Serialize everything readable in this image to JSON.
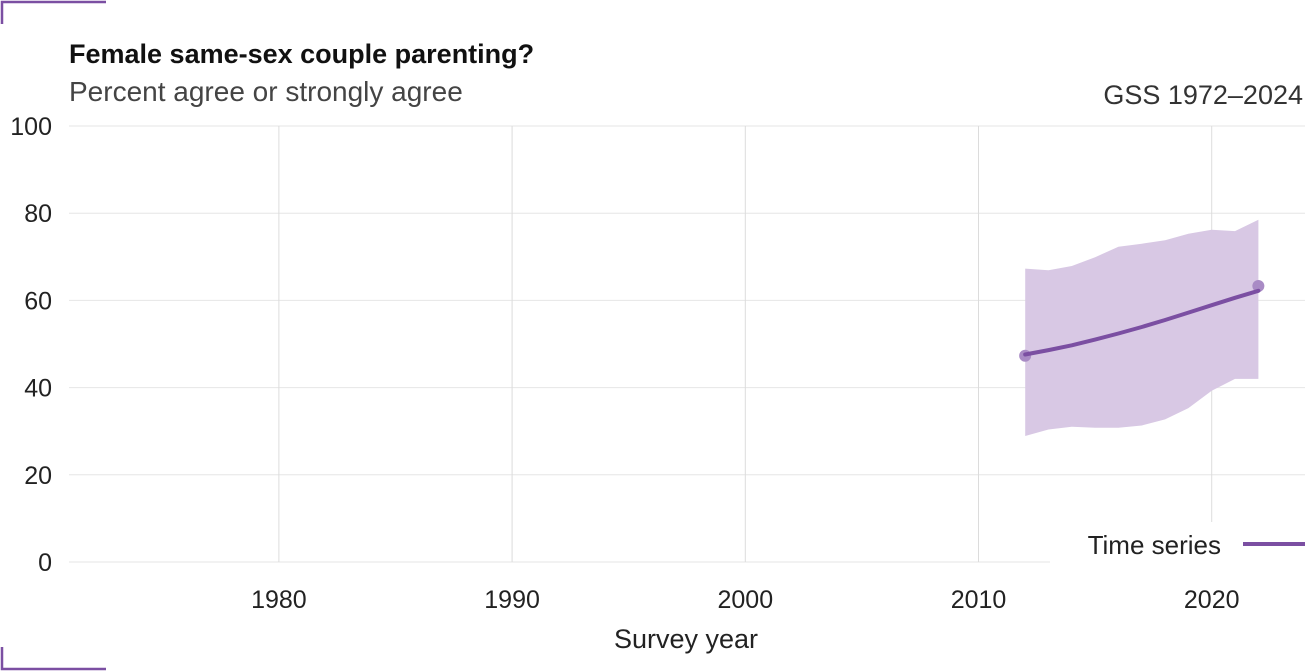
{
  "colors": {
    "accent": "#7b4fa2",
    "band": "#d8c8e4",
    "point": "#a98bc5"
  },
  "chart_data": {
    "type": "line",
    "title": "Female same-sex couple parenting?",
    "subtitle": "Percent agree or strongly agree",
    "source": "GSS 1972–2024",
    "xlabel": "Survey year",
    "ylabel": "",
    "xlim": [
      1971,
      2024
    ],
    "ylim": [
      0,
      100
    ],
    "x_ticks": [
      1980,
      1990,
      2000,
      2010,
      2020
    ],
    "y_ticks": [
      0,
      20,
      40,
      60,
      80,
      100
    ],
    "legend": {
      "placement": "bottom-right",
      "label": "Time series"
    },
    "series": [
      {
        "name": "Time series",
        "x": [
          2012,
          2013,
          2014,
          2015,
          2016,
          2017,
          2018,
          2019,
          2020,
          2021,
          2022
        ],
        "y": [
          47.6,
          48.6,
          49.7,
          51.0,
          52.4,
          53.9,
          55.5,
          57.2,
          58.9,
          60.6,
          62.2
        ],
        "lower": [
          28.9,
          30.4,
          31.0,
          30.8,
          30.8,
          31.3,
          32.7,
          35.3,
          39.3,
          42.0,
          42.0
        ],
        "upper": [
          67.3,
          66.9,
          67.9,
          69.9,
          72.3,
          73.0,
          73.8,
          75.3,
          76.2,
          75.9,
          78.5
        ]
      }
    ],
    "points": [
      {
        "x": 2012,
        "y": 47.3
      },
      {
        "x": 2022,
        "y": 63.3
      }
    ]
  }
}
